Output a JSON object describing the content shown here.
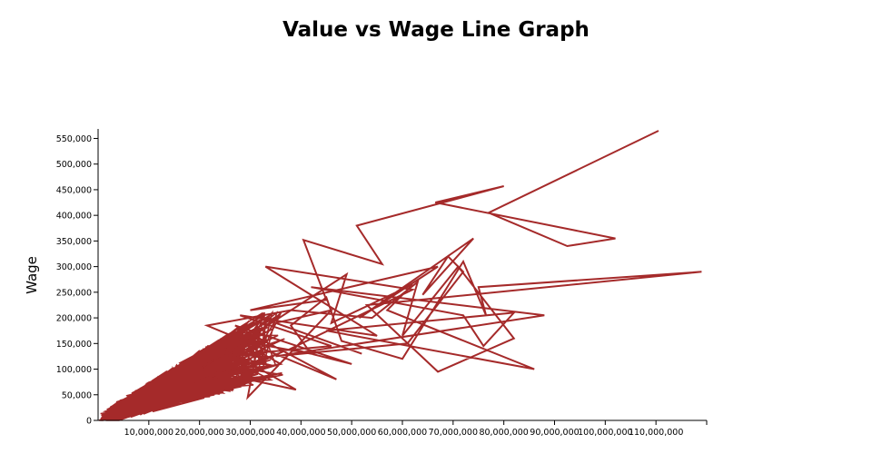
{
  "chart_data": {
    "type": "line",
    "title": "Value vs Wage Line Graph",
    "xlabel": "",
    "ylabel": "Wage",
    "xlim": [
      0,
      120000000
    ],
    "ylim": [
      0,
      565000
    ],
    "x_ticks": [
      10000000,
      20000000,
      30000000,
      40000000,
      50000000,
      60000000,
      70000000,
      80000000,
      90000000,
      100000000,
      110000000
    ],
    "x_tick_labels": [
      "10,000,000",
      "20,000,000",
      "30,000,000",
      "40,000,000",
      "50,000,000",
      "60,000,000",
      "70,000,000",
      "80,000,000",
      "90,000,000",
      "100,000,000",
      "110,000,000"
    ],
    "y_ticks": [
      0,
      50000,
      100000,
      150000,
      200000,
      250000,
      300000,
      350000,
      400000,
      450000,
      500000,
      550000
    ],
    "y_tick_labels": [
      "0",
      "50,000",
      "100,000",
      "150,000",
      "200,000",
      "250,000",
      "300,000",
      "350,000",
      "400,000",
      "450,000",
      "500,000",
      "550,000"
    ],
    "grid": false,
    "line_color": "#a52a2a",
    "series": [
      {
        "x": [
          110500000,
          77000000,
          92500000,
          102000000,
          66500000,
          80000000,
          51000000,
          56000000,
          40500000,
          45000000,
          30000000,
          67000000,
          51500000,
          74000000,
          64000000,
          69000000,
          72000000,
          61000000,
          35000000,
          88000000,
          42000000,
          72000000,
          76000000,
          82000000,
          45000000,
          86000000,
          57000000,
          62000000,
          46000000,
          49000000,
          24000000,
          46000000,
          28000000,
          55000000,
          33000000,
          62000000,
          38000000,
          50000000,
          27000000,
          47000000,
          21500000,
          38000000,
          54000000,
          63000000,
          60000000,
          71000000,
          82000000,
          67000000,
          53000000,
          119000000,
          75000000,
          76500000,
          72000000,
          60000000,
          48000000,
          45000000,
          38000000,
          42000000,
          28000000,
          36000000,
          19000000,
          33000000,
          25000000,
          39000000,
          20000000,
          32000000,
          29500000,
          46000000,
          35000000,
          52000000
        ],
        "y": [
          565000,
          405000,
          340000,
          355000,
          425000,
          457000,
          380000,
          305000,
          352000,
          235000,
          215000,
          300000,
          200000,
          355000,
          245000,
          320000,
          290000,
          150000,
          125000,
          205000,
          260000,
          205000,
          145000,
          210000,
          175000,
          100000,
          215000,
          265000,
          190000,
          285000,
          125000,
          145000,
          205000,
          165000,
          300000,
          255000,
          140000,
          110000,
          185000,
          80000,
          185000,
          215000,
          200000,
          270000,
          165000,
          300000,
          160000,
          95000,
          225000,
          290000,
          260000,
          205000,
          310000,
          120000,
          155000,
          240000,
          185000,
          130000,
          155000,
          110000,
          75000,
          120000,
          140000,
          60000,
          100000,
          175000,
          45000,
          215000,
          190000,
          130000
        ]
      }
    ],
    "dense_cluster_note": ""
  }
}
